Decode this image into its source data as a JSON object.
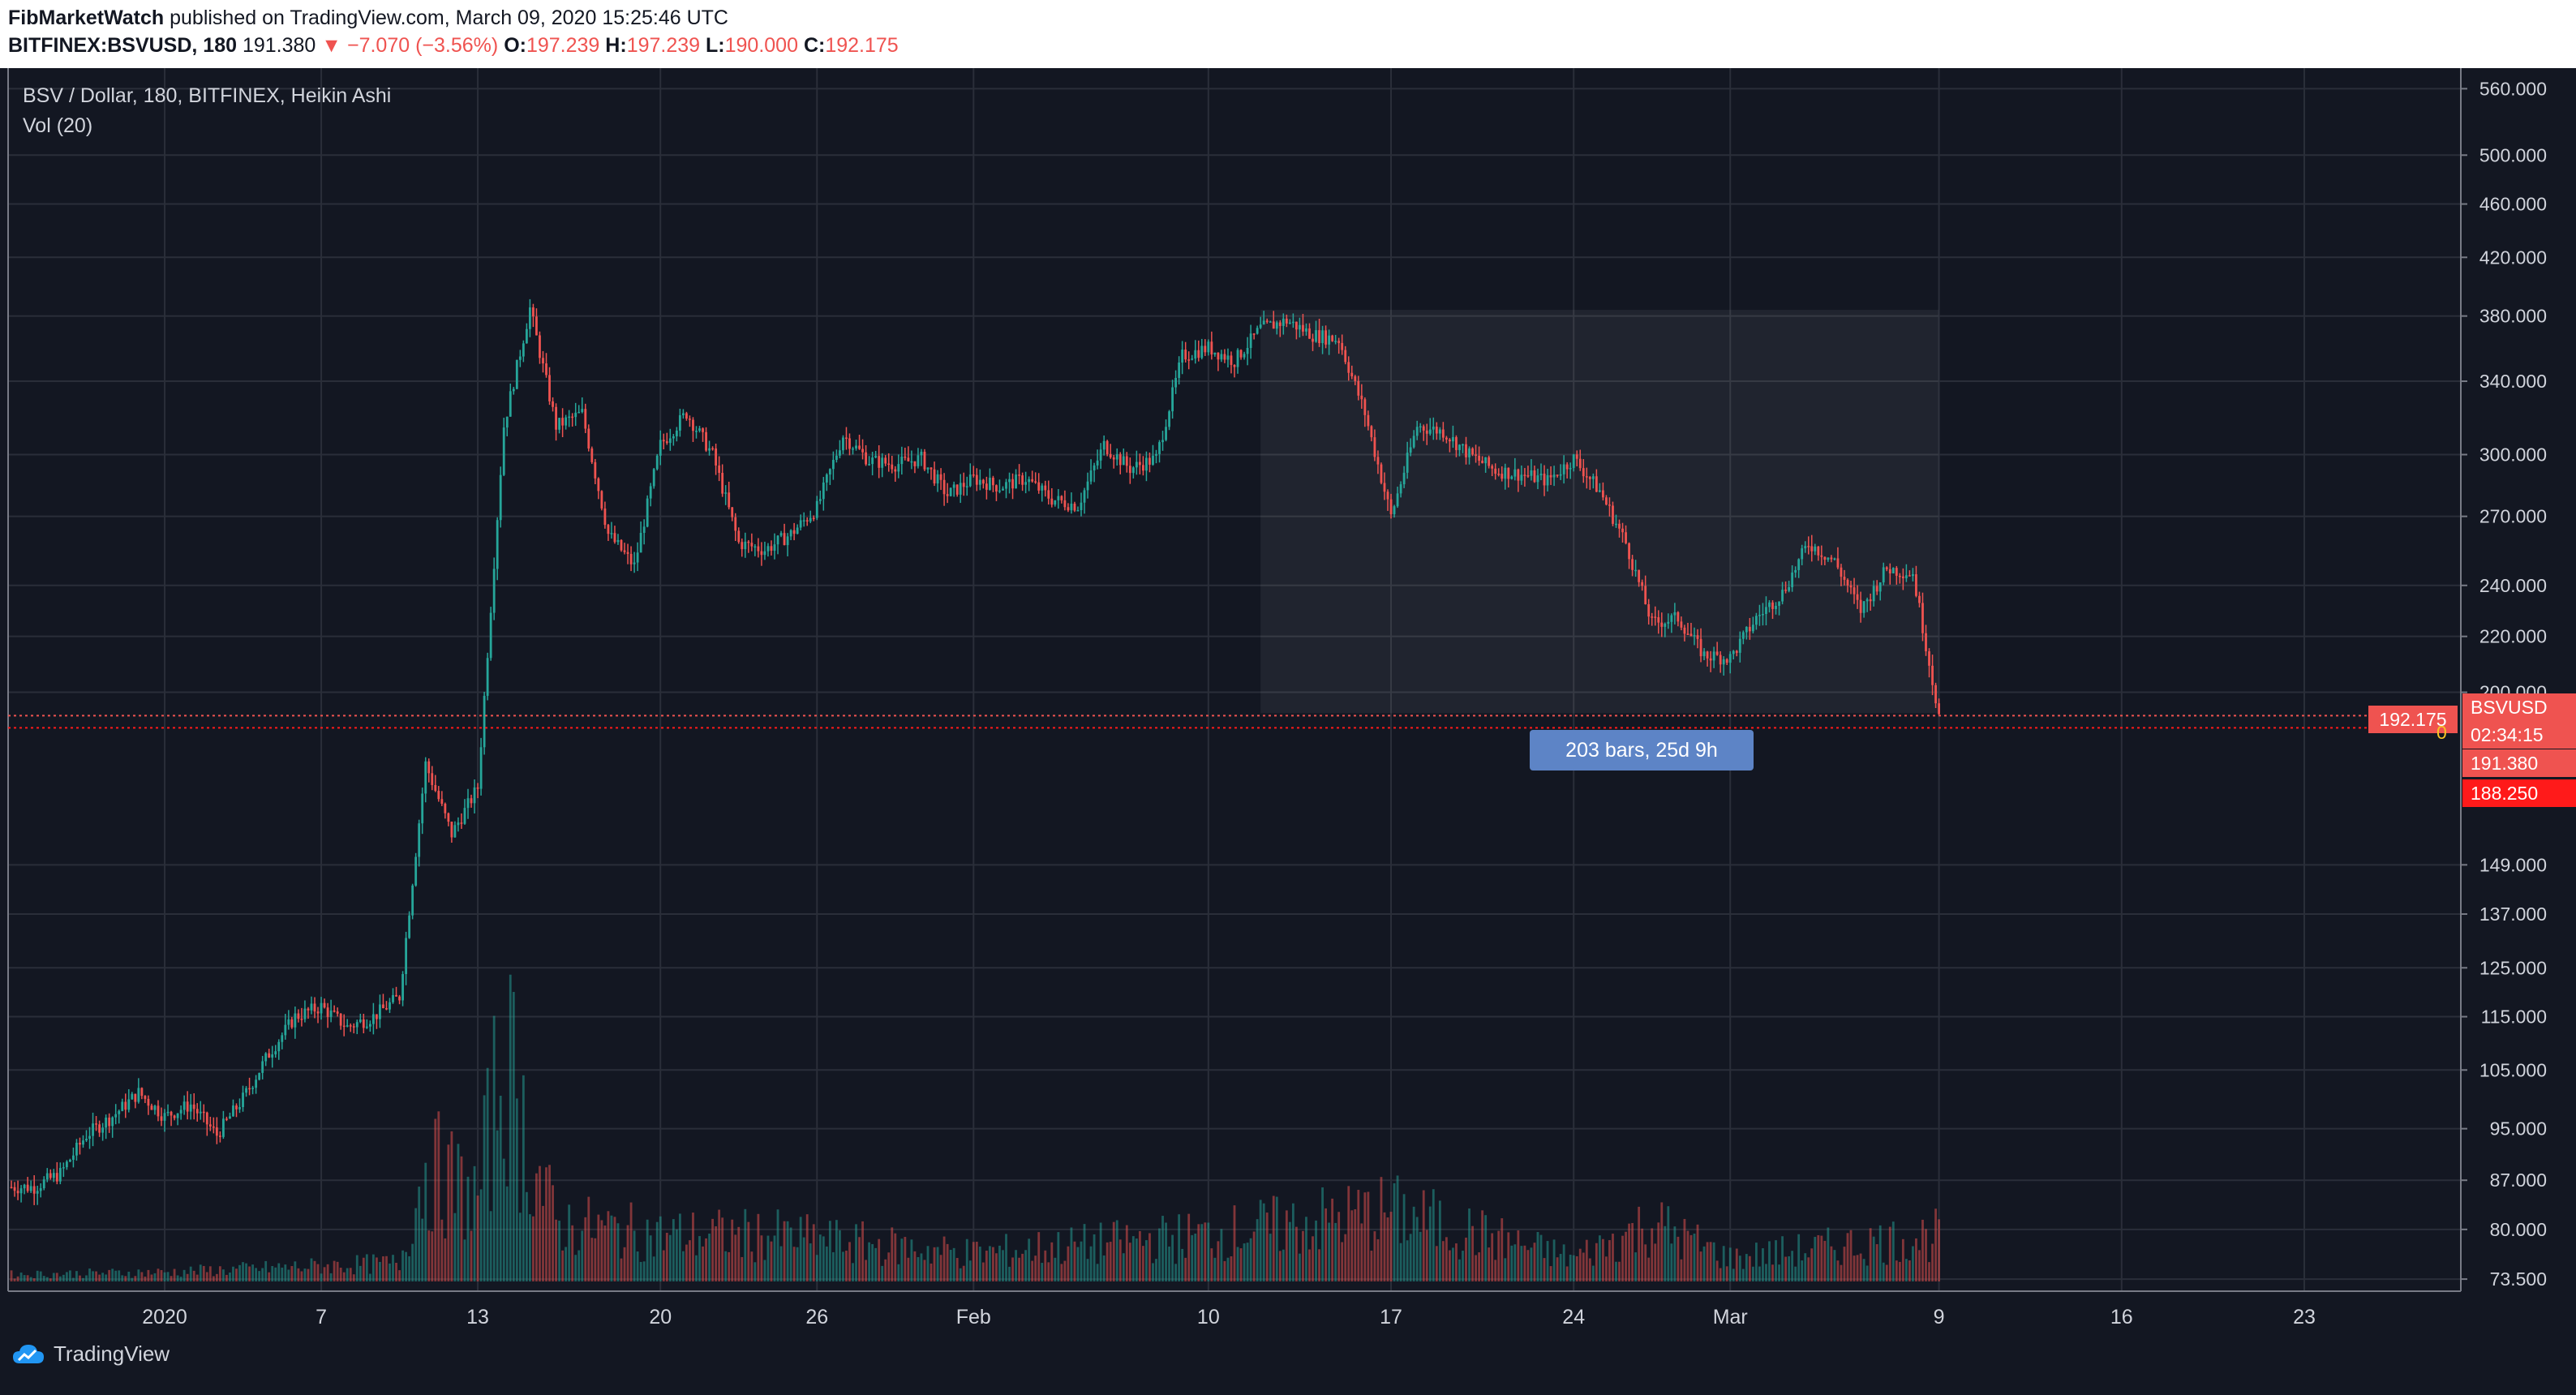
{
  "header": {
    "publisher": "FibMarketWatch",
    "published_text": "published on TradingView.com, March 09, 2020 15:25:46 UTC",
    "symbol": "BITFINEX:BSVUSD, 180",
    "last": "191.380",
    "change": "▼ −7.070 (−3.56%)",
    "o_label": "O:",
    "o_value": "197.239",
    "h_label": "H:",
    "h_value": "197.239",
    "l_label": "L:",
    "l_value": "190.000",
    "c_label": "C:",
    "c_value": "192.175"
  },
  "legend": {
    "series": "BSV / Dollar, 180, BITFINEX, Heikin Ashi",
    "volume": "Vol (20)"
  },
  "measure": {
    "label": "203 bars, 25d 9h"
  },
  "price_labels": {
    "symbol_tag": "BSVUSD",
    "last_close": "192.175",
    "countdown": "02:34:15",
    "price2": "191.380",
    "price3": "188.250",
    "zero": "0"
  },
  "footer": {
    "brand": "TradingView"
  },
  "colors": {
    "background": "#131722",
    "grid": "#2a2e39",
    "up": "#26a69a",
    "down": "#ef5350",
    "text": "#d1d4dc"
  },
  "chart_data": {
    "type": "candlestick",
    "y_scale": "log",
    "ylim": [
      72,
      580
    ],
    "xlabel": "",
    "ylabel": "",
    "title": "",
    "y_ticks": [
      73.5,
      80,
      87,
      95,
      105,
      115,
      125,
      137,
      149,
      200,
      220,
      240,
      270,
      300,
      340,
      380,
      420,
      460,
      500,
      560
    ],
    "y_tick_labels": [
      "73.500",
      "80.000",
      "87.000",
      "95.000",
      "105.000",
      "115.000",
      "125.000",
      "137.000",
      "149.000",
      "200.000",
      "220.000",
      "240.000",
      "270.000",
      "300.000",
      "340.000",
      "380.000",
      "420.000",
      "460.000",
      "500.000",
      "560.000"
    ],
    "x_ticks": [
      "2020-01-01",
      "2020-01-07",
      "2020-01-13",
      "2020-01-20",
      "2020-01-26",
      "2020-02-01",
      "2020-02-10",
      "2020-02-17",
      "2020-02-24",
      "2020-03-01",
      "2020-03-09",
      "2020-03-16",
      "2020-03-23"
    ],
    "x_tick_labels": [
      "2020",
      "7",
      "13",
      "20",
      "26",
      "Feb",
      "10",
      "17",
      "24",
      "Mar",
      "9",
      "16",
      "23"
    ],
    "xlim": [
      "2019-12-26",
      "2020-03-29"
    ],
    "close_series": [
      [
        "2019-12-26",
        86
      ],
      [
        "2019-12-27",
        86
      ],
      [
        "2019-12-28",
        88
      ],
      [
        "2019-12-29",
        94
      ],
      [
        "2019-12-30",
        97
      ],
      [
        "2019-12-31",
        101
      ],
      [
        "2020-01-01",
        97
      ],
      [
        "2020-01-02",
        99
      ],
      [
        "2020-01-03",
        94
      ],
      [
        "2020-01-04",
        100
      ],
      [
        "2020-01-05",
        108
      ],
      [
        "2020-01-06",
        115
      ],
      [
        "2020-01-07",
        117
      ],
      [
        "2020-01-08",
        113
      ],
      [
        "2020-01-09",
        115
      ],
      [
        "2020-01-10",
        119
      ],
      [
        "2020-01-11",
        177
      ],
      [
        "2020-01-12",
        157
      ],
      [
        "2020-01-13",
        170
      ],
      [
        "2020-01-14",
        315
      ],
      [
        "2020-01-15",
        385
      ],
      [
        "2020-01-16",
        315
      ],
      [
        "2020-01-17",
        322
      ],
      [
        "2020-01-18",
        262
      ],
      [
        "2020-01-19",
        248
      ],
      [
        "2020-01-20",
        305
      ],
      [
        "2020-01-21",
        322
      ],
      [
        "2020-01-22",
        300
      ],
      [
        "2020-01-23",
        258
      ],
      [
        "2020-01-24",
        255
      ],
      [
        "2020-01-25",
        262
      ],
      [
        "2020-01-26",
        274
      ],
      [
        "2020-01-27",
        310
      ],
      [
        "2020-01-28",
        297
      ],
      [
        "2020-01-29",
        295
      ],
      [
        "2020-01-30",
        298
      ],
      [
        "2020-01-31",
        280
      ],
      [
        "2020-02-01",
        288
      ],
      [
        "2020-02-02",
        284
      ],
      [
        "2020-02-03",
        288
      ],
      [
        "2020-02-04",
        278
      ],
      [
        "2020-02-05",
        275
      ],
      [
        "2020-02-06",
        305
      ],
      [
        "2020-02-07",
        293
      ],
      [
        "2020-02-08",
        298
      ],
      [
        "2020-02-09",
        355
      ],
      [
        "2020-02-10",
        360
      ],
      [
        "2020-02-11",
        352
      ],
      [
        "2020-02-12",
        372
      ],
      [
        "2020-02-13",
        377
      ],
      [
        "2020-02-14",
        368
      ],
      [
        "2020-02-15",
        365
      ],
      [
        "2020-02-16",
        322
      ],
      [
        "2020-02-17",
        270
      ],
      [
        "2020-02-18",
        315
      ],
      [
        "2020-02-19",
        312
      ],
      [
        "2020-02-20",
        300
      ],
      [
        "2020-02-21",
        292
      ],
      [
        "2020-02-22",
        290
      ],
      [
        "2020-02-23",
        287
      ],
      [
        "2020-02-24",
        298
      ],
      [
        "2020-02-25",
        282
      ],
      [
        "2020-02-26",
        258
      ],
      [
        "2020-02-27",
        225
      ],
      [
        "2020-02-28",
        227
      ],
      [
        "2020-02-29",
        213
      ],
      [
        "2020-03-01",
        212
      ],
      [
        "2020-03-02",
        227
      ],
      [
        "2020-03-03",
        237
      ],
      [
        "2020-03-04",
        258
      ],
      [
        "2020-03-05",
        250
      ],
      [
        "2020-03-06",
        230
      ],
      [
        "2020-03-07",
        247
      ],
      [
        "2020-03-08",
        245
      ],
      [
        "2020-03-09",
        192.175
      ]
    ],
    "volume_relative": [
      [
        "2019-12-26",
        0.03
      ],
      [
        "2020-01-01",
        0.04
      ],
      [
        "2020-01-10",
        0.08
      ],
      [
        "2020-01-11",
        0.5
      ],
      [
        "2020-01-13",
        0.35
      ],
      [
        "2020-01-14",
        1.0
      ],
      [
        "2020-01-15",
        0.55
      ],
      [
        "2020-01-16",
        0.25
      ],
      [
        "2020-01-20",
        0.2
      ],
      [
        "2020-01-24",
        0.2
      ],
      [
        "2020-02-01",
        0.12
      ],
      [
        "2020-02-10",
        0.2
      ],
      [
        "2020-02-17",
        0.3
      ],
      [
        "2020-02-24",
        0.1
      ],
      [
        "2020-02-27",
        0.25
      ],
      [
        "2020-03-01",
        0.1
      ],
      [
        "2020-03-09",
        0.2
      ]
    ],
    "last_price": 192.175
  }
}
